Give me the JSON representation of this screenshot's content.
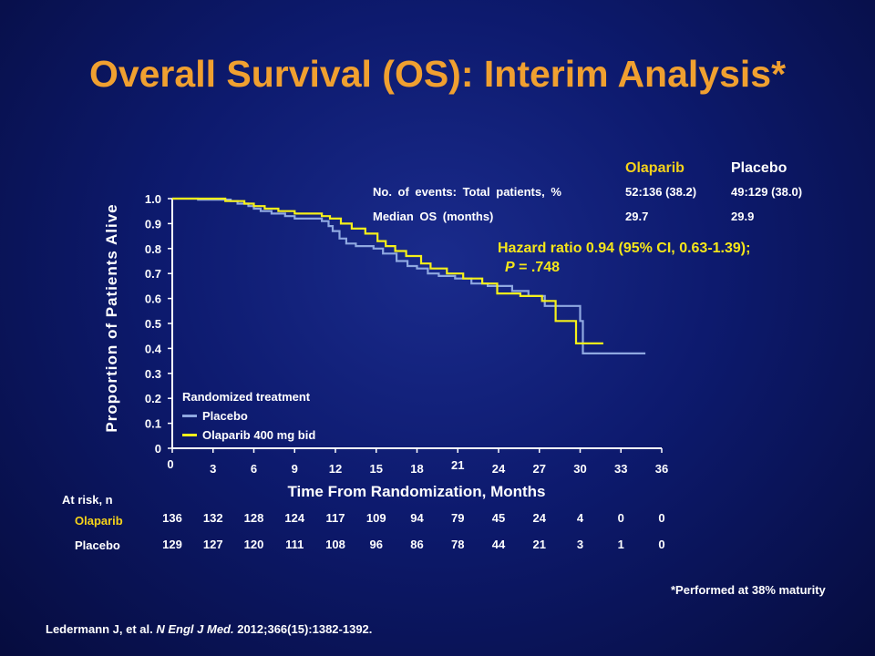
{
  "title": "Overall Survival (OS): Interim Analysis*",
  "stats_table": {
    "headers": [
      "Olaparib",
      "Placebo"
    ],
    "rows": [
      {
        "label": "No. of events: Total patients, %",
        "olaparib": "52:136 (38.2)",
        "placebo": "49:129 (38.0)"
      },
      {
        "label": "Median OS (months)",
        "olaparib": "29.7",
        "placebo": "29.9"
      }
    ]
  },
  "hazard_ratio": {
    "line1": "Hazard ratio 0.94 (95% CI, 0.63-1.39);",
    "p_label": "P",
    "p_value": " = .748"
  },
  "legend": {
    "title": "Randomized treatment",
    "items": [
      "Placebo",
      "Olaparib 400 mg bid"
    ]
  },
  "colors": {
    "olaparib": "#f5f01a",
    "placebo": "#8fa8e0",
    "title": "#f0a030"
  },
  "chart_data": {
    "type": "line",
    "ylabel": "Proportion of Patients Alive",
    "xlabel": "Time From Randomization, Months",
    "xlim": [
      0,
      36
    ],
    "ylim": [
      0,
      1.0
    ],
    "xticks": [
      "0",
      "3",
      "6",
      "9",
      "12",
      "15",
      "18",
      "21",
      "24",
      "27",
      "30",
      "33",
      "36"
    ],
    "yticks": [
      "0",
      "0.1",
      "0.2",
      "0.3",
      "0.4",
      "0.5",
      "0.6",
      "0.7",
      "0.8",
      "0.9",
      "1.0"
    ],
    "series": [
      {
        "name": "Placebo",
        "x": [
          0,
          1.9,
          4.3,
          4.8,
          5.6,
          6.0,
          6.5,
          7.3,
          8.3,
          9.0,
          11.0,
          11.5,
          11.8,
          12.3,
          12.8,
          13.5,
          14.8,
          15.5,
          16.5,
          17.3,
          18.0,
          18.8,
          19.6,
          20.8,
          22.0,
          23.2,
          25.0,
          26.2,
          27.4,
          29.6,
          30.0,
          30.2,
          34.8
        ],
        "y": [
          1.0,
          0.996,
          0.99,
          0.98,
          0.97,
          0.96,
          0.95,
          0.94,
          0.93,
          0.92,
          0.91,
          0.89,
          0.87,
          0.84,
          0.82,
          0.81,
          0.8,
          0.78,
          0.75,
          0.73,
          0.72,
          0.7,
          0.69,
          0.68,
          0.66,
          0.65,
          0.63,
          0.61,
          0.57,
          0.57,
          0.51,
          0.38,
          0.38
        ]
      },
      {
        "name": "Olaparib 400 mg bid",
        "x": [
          0,
          3.9,
          5.3,
          6.0,
          6.8,
          7.8,
          9.0,
          11.0,
          11.6,
          12.4,
          13.2,
          14.2,
          15.1,
          15.7,
          16.4,
          17.2,
          18.3,
          19.0,
          20.2,
          21.4,
          22.8,
          23.9,
          25.6,
          27.2,
          28.2,
          29.7,
          31.7
        ],
        "y": [
          1.0,
          0.99,
          0.98,
          0.97,
          0.96,
          0.95,
          0.94,
          0.93,
          0.92,
          0.9,
          0.88,
          0.86,
          0.83,
          0.81,
          0.79,
          0.77,
          0.74,
          0.72,
          0.7,
          0.68,
          0.66,
          0.62,
          0.61,
          0.59,
          0.51,
          0.42,
          0.42
        ]
      }
    ],
    "at_risk": {
      "label": "At risk, n",
      "rows": [
        {
          "name": "Olaparib",
          "values": [
            "136",
            "132",
            "128",
            "124",
            "117",
            "109",
            "94",
            "79",
            "45",
            "24",
            "4",
            "0",
            "0"
          ]
        },
        {
          "name": "Placebo",
          "values": [
            "129",
            "127",
            "120",
            "111",
            "108",
            "96",
            "86",
            "78",
            "44",
            "21",
            "3",
            "1",
            "0"
          ]
        }
      ]
    }
  },
  "footnote": "*Performed at 38% maturity",
  "citation": {
    "authors": "Ledermann J, et al. ",
    "journal": "N Engl J Med.",
    "details": " 2012;366(15):1382-1392."
  }
}
